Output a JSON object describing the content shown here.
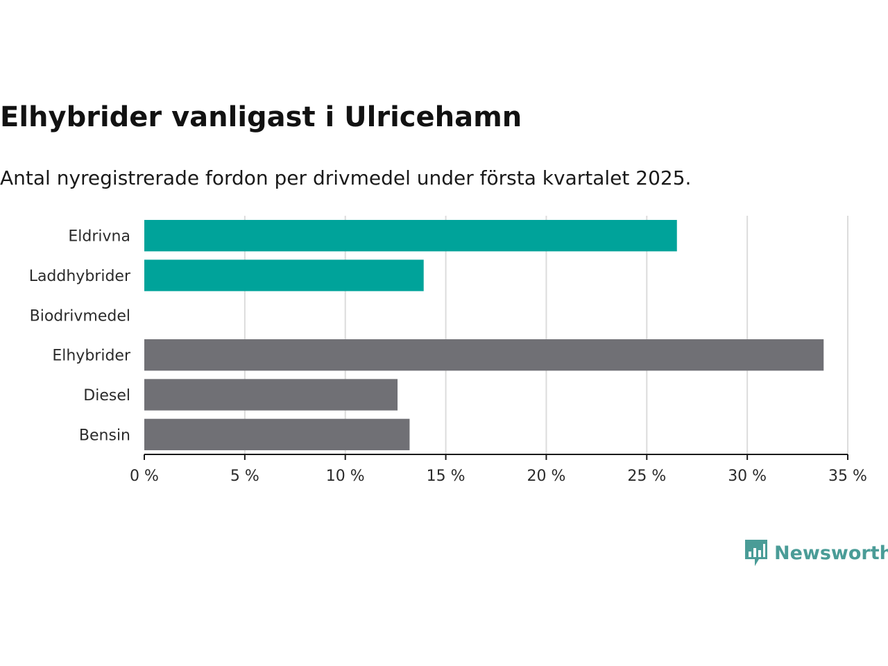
{
  "chart_data": {
    "type": "bar",
    "orientation": "horizontal",
    "title": "Elhybrider vanligast i Ulricehamn",
    "subtitle": "Antal nyregistrerade fordon per drivmedel under första kvartalet 2025.",
    "categories": [
      "Eldrivna",
      "Laddhybrider",
      "Biodrivmedel",
      "Elhybrider",
      "Diesel",
      "Bensin"
    ],
    "values": [
      26.5,
      13.9,
      0,
      33.8,
      12.6,
      13.2
    ],
    "bar_colors": [
      "#00a39a",
      "#00a39a",
      "#707075",
      "#707075",
      "#707075",
      "#707075"
    ],
    "xlim": [
      0,
      35
    ],
    "xticks": [
      0,
      5,
      10,
      15,
      20,
      25,
      30,
      35
    ],
    "xtick_labels": [
      "0 %",
      "5 %",
      "10 %",
      "15 %",
      "20 %",
      "25 %",
      "30 %",
      "35 %"
    ],
    "grid": "vertical",
    "xlabel": "",
    "ylabel": ""
  },
  "brand": {
    "name": "Newsworthy",
    "color": "#4a9c97"
  }
}
